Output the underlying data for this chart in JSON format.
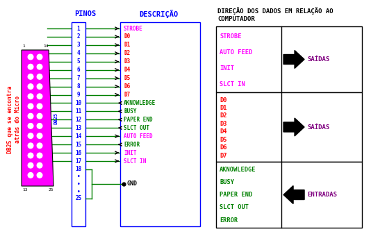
{
  "title_pinos": "PINOS",
  "title_descricao": "DESCRIÇÃO",
  "direction_line1": "DIREÇÃO DOS DADOS EM RELAÇÃO AO",
  "direction_line2": "COMPUTADOR",
  "pin_entries": [
    {
      "pin": "1",
      "signal": "STROBE",
      "color": "#FF00FF",
      "dir": 1
    },
    {
      "pin": "2",
      "signal": "D0",
      "color": "#FF0000",
      "dir": 1
    },
    {
      "pin": "3",
      "signal": "D1",
      "color": "#FF0000",
      "dir": 1
    },
    {
      "pin": "4",
      "signal": "D2",
      "color": "#FF0000",
      "dir": 1
    },
    {
      "pin": "5",
      "signal": "D3",
      "color": "#FF0000",
      "dir": 1
    },
    {
      "pin": "6",
      "signal": "D4",
      "color": "#FF0000",
      "dir": 1
    },
    {
      "pin": "7",
      "signal": "D5",
      "color": "#FF0000",
      "dir": 1
    },
    {
      "pin": "8",
      "signal": "D6",
      "color": "#FF0000",
      "dir": 1
    },
    {
      "pin": "9",
      "signal": "D7",
      "color": "#FF0000",
      "dir": 1
    },
    {
      "pin": "10",
      "signal": "AKNOWLEDGE",
      "color": "#008000",
      "dir": -1
    },
    {
      "pin": "11",
      "signal": "BUSY",
      "color": "#008000",
      "dir": -1
    },
    {
      "pin": "12",
      "signal": "PAPER END",
      "color": "#008000",
      "dir": -1
    },
    {
      "pin": "13",
      "signal": "SLCT OUT",
      "color": "#008000",
      "dir": -1
    },
    {
      "pin": "14",
      "signal": "AUTO FEED",
      "color": "#FF00FF",
      "dir": 1
    },
    {
      "pin": "15",
      "signal": "ERROR",
      "color": "#008000",
      "dir": -1
    },
    {
      "pin": "16",
      "signal": "INIT",
      "color": "#FF00FF",
      "dir": 1
    },
    {
      "pin": "17",
      "signal": "SLCT IN",
      "color": "#FF00FF",
      "dir": 1
    }
  ],
  "box1_items": [
    {
      "label": "STROBE",
      "color": "#FF00FF"
    },
    {
      "label": "AUTO FEED",
      "color": "#FF00FF"
    },
    {
      "label": "INIT",
      "color": "#FF00FF"
    },
    {
      "label": "SLCT IN",
      "color": "#FF00FF"
    }
  ],
  "box2_items": [
    {
      "label": "D0",
      "color": "#FF0000"
    },
    {
      "label": "D1",
      "color": "#FF0000"
    },
    {
      "label": "D2",
      "color": "#FF0000"
    },
    {
      "label": "D3",
      "color": "#FF0000"
    },
    {
      "label": "D4",
      "color": "#FF0000"
    },
    {
      "label": "D5",
      "color": "#FF0000"
    },
    {
      "label": "D6",
      "color": "#FF0000"
    },
    {
      "label": "D7",
      "color": "#FF0000"
    }
  ],
  "box3_items": [
    {
      "label": "AKNOWLEDGE",
      "color": "#008000"
    },
    {
      "label": "BUSY",
      "color": "#008000"
    },
    {
      "label": "PAPER END",
      "color": "#008000"
    },
    {
      "label": "SLCT OUT",
      "color": "#008000"
    },
    {
      "label": "ERROR",
      "color": "#008000"
    }
  ],
  "saidas_color": "#800080",
  "entradas_color": "#800080",
  "db25_fill": "#FF00FF",
  "sidebar_color": "#FF0000",
  "sidebar_text": "DB25 que se encontra\natrás do Micro",
  "blue": "#0000FF",
  "green": "#008000",
  "black": "#000000"
}
